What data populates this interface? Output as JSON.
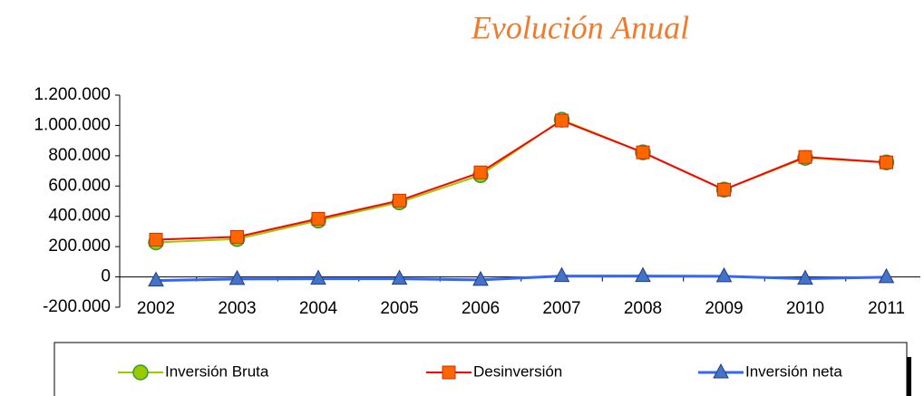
{
  "chart_data": {
    "type": "line",
    "title": "Evolución Anual",
    "categories": [
      "2002",
      "2003",
      "2004",
      "2005",
      "2006",
      "2007",
      "2008",
      "2009",
      "2010",
      "2011"
    ],
    "series": [
      {
        "name": "Inversión Bruta",
        "color": "#99cc00",
        "marker": "circle",
        "values": [
          228000,
          250000,
          372000,
          492000,
          672000,
          1038000,
          822000,
          576000,
          786000,
          756000
        ]
      },
      {
        "name": "Desinversión",
        "color": "#ff0000",
        "marker": "square",
        "values": [
          246000,
          264000,
          384000,
          504000,
          690000,
          1032000,
          822000,
          576000,
          792000,
          756000
        ]
      },
      {
        "name": "Inversión neta",
        "color": "#3366ff",
        "marker": "triangle",
        "values": [
          -24000,
          -14000,
          -12000,
          -12000,
          -20000,
          6000,
          6000,
          4000,
          -12000,
          -2000
        ]
      }
    ],
    "ylim": [
      -200000,
      1200000
    ],
    "yticks": [
      {
        "value": -200000,
        "label": "-200.000"
      },
      0,
      {
        "value": 200000,
        "label": "200.000"
      },
      {
        "value": 400000,
        "label": "400.000"
      },
      {
        "value": 600000,
        "label": "600.000"
      },
      {
        "value": 800000,
        "label": "800.000"
      },
      {
        "value": 1000000,
        "label": "1.000.000"
      },
      {
        "value": 1200000,
        "label": "1.200.000"
      }
    ],
    "grid": false,
    "legend": "bottom"
  }
}
